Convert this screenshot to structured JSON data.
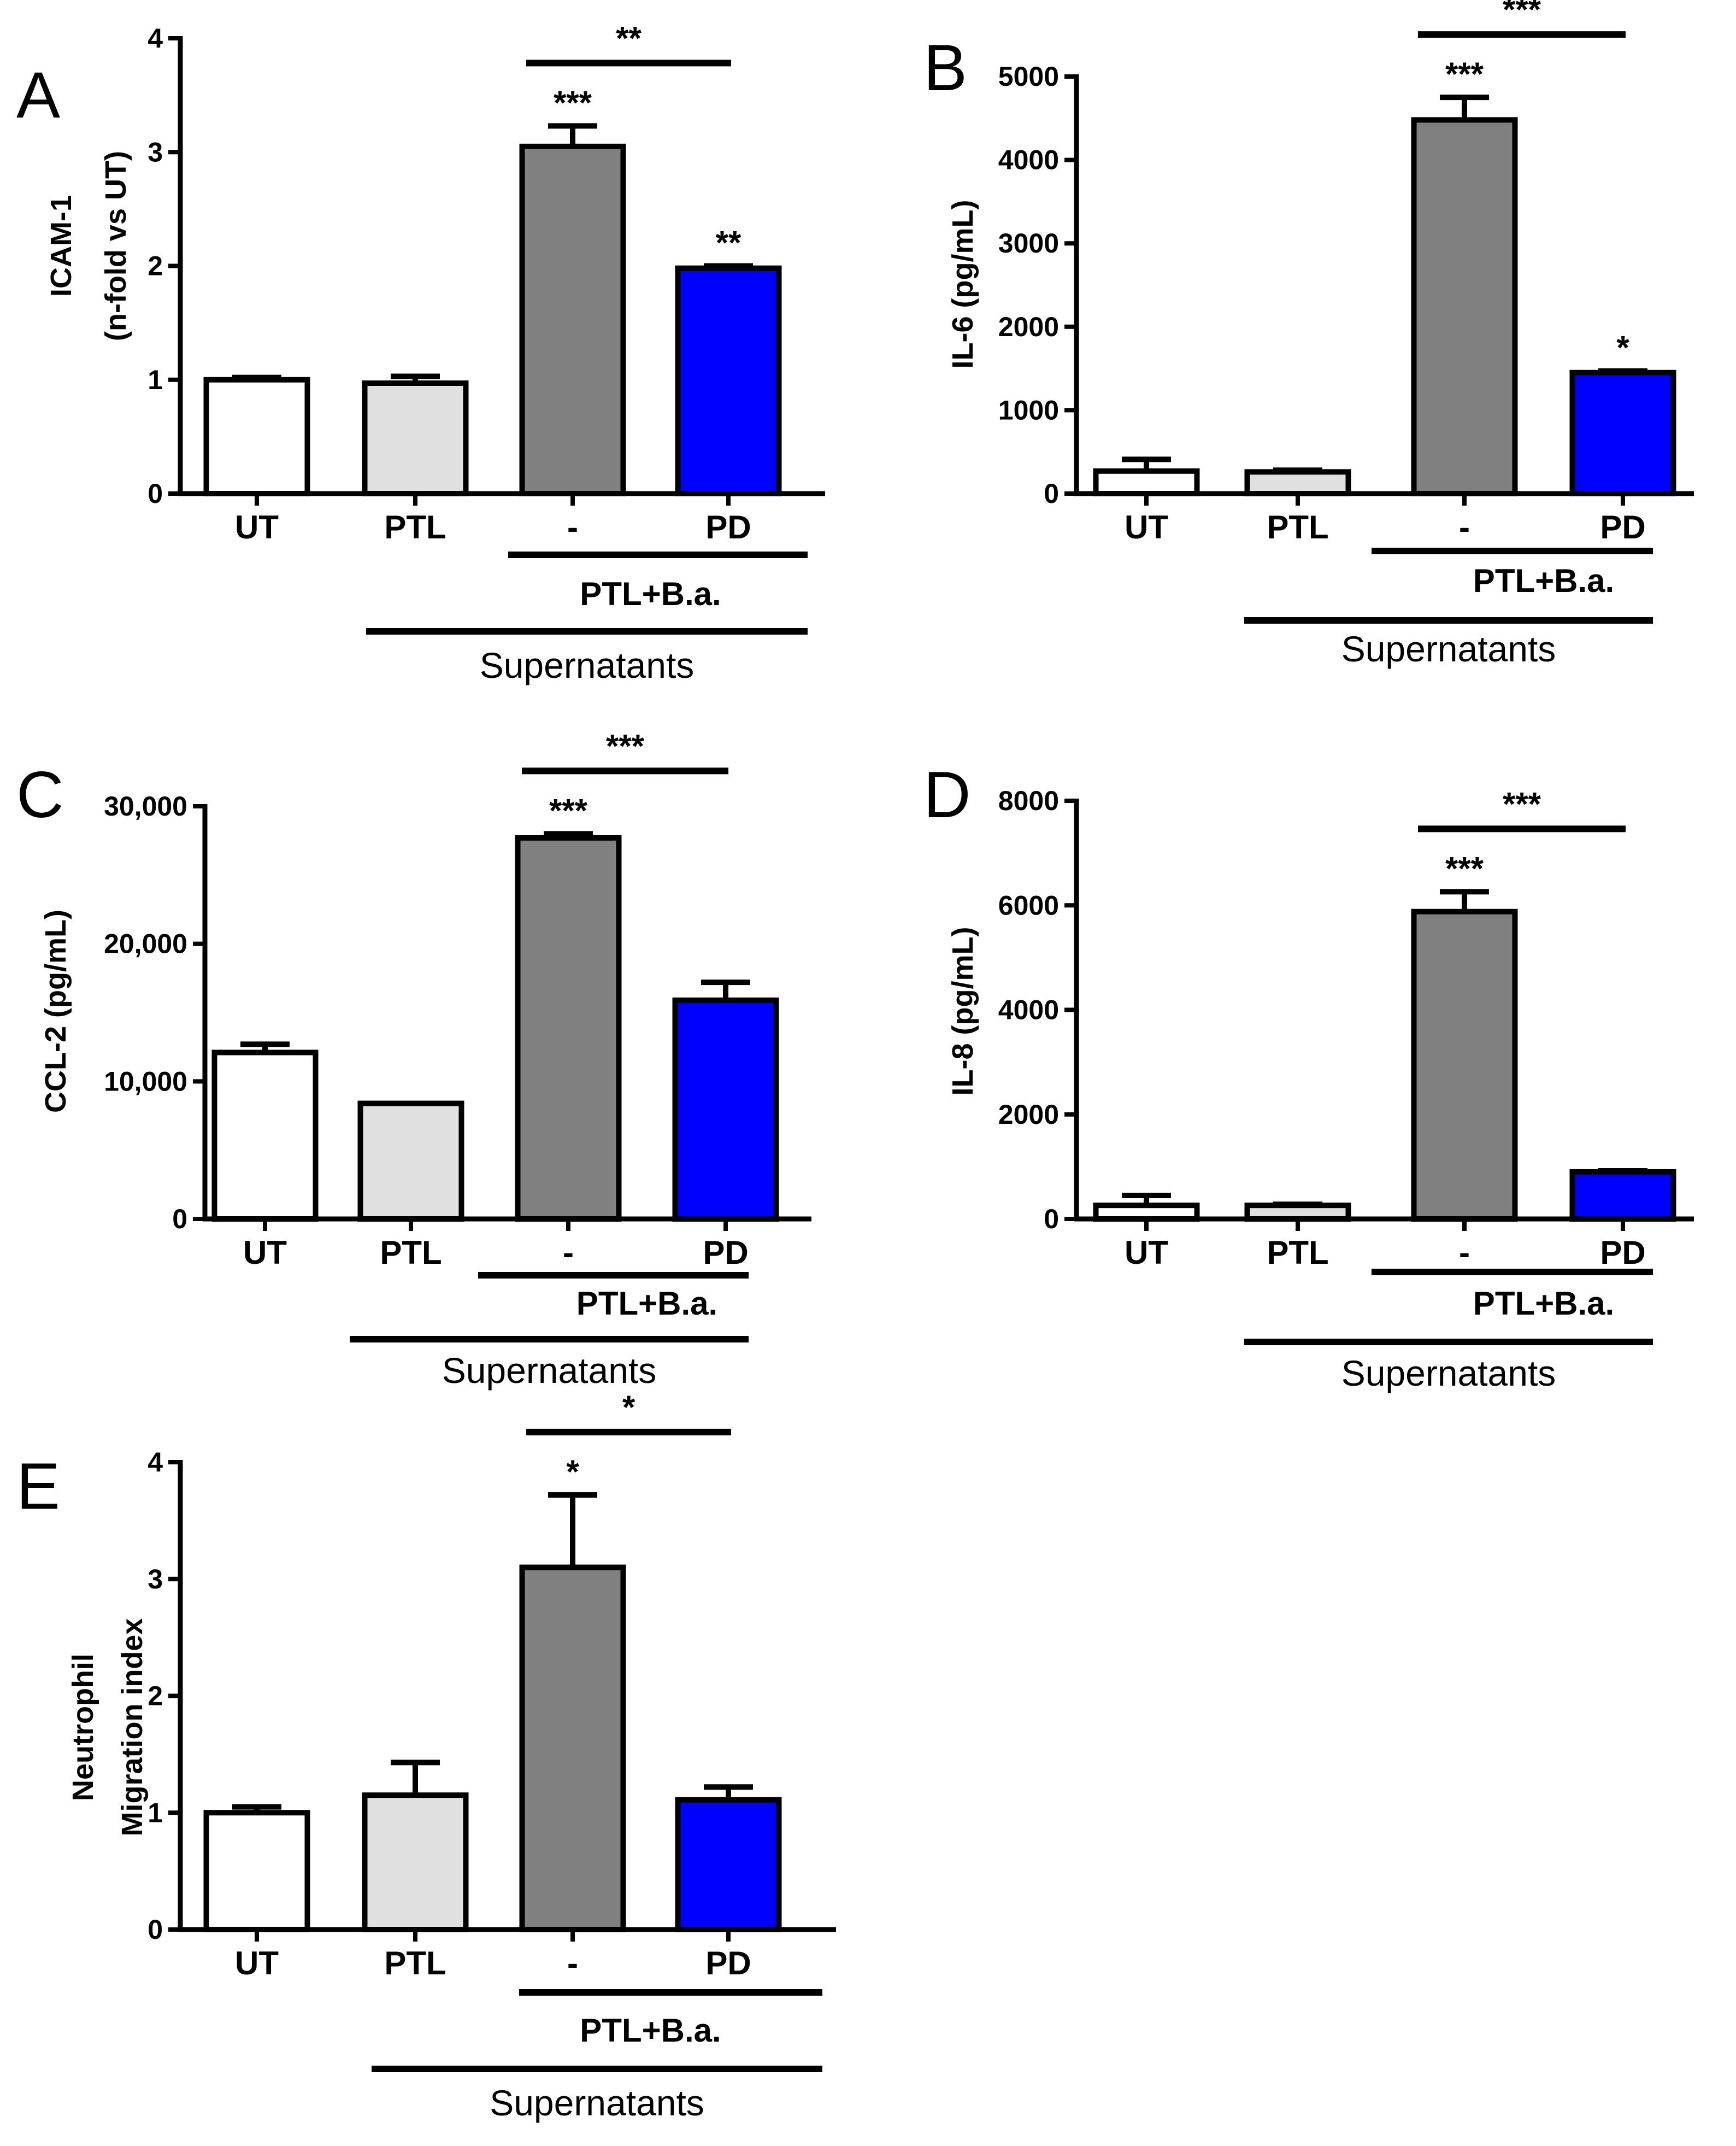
{
  "chart_data": [
    {
      "panel": "A",
      "type": "bar",
      "ylabel": [
        "ICAM-1",
        "(n-fold vs UT)"
      ],
      "ylim": [
        0,
        4
      ],
      "yticks": [
        0,
        1,
        2,
        3,
        4
      ],
      "ytick_labels": [
        "0",
        "1",
        "2",
        "3",
        "4"
      ],
      "categories": [
        "UT",
        "PTL",
        "-",
        "PD"
      ],
      "values": [
        1.0,
        0.97,
        3.05,
        1.98
      ],
      "errors": [
        0.02,
        0.06,
        0.18,
        0.02
      ],
      "colors": [
        "#ffffff",
        "#e0e0e0",
        "#808080",
        "#0000ff"
      ],
      "bar_stars": [
        "",
        "",
        "***",
        "**"
      ],
      "comparison": {
        "from": 2,
        "to": 3,
        "label": "**"
      },
      "group_label": "PTL+B.a.",
      "supernatants_label": "Supernatants"
    },
    {
      "panel": "B",
      "type": "bar",
      "ylabel": [
        "IL-6 (pg/mL)"
      ],
      "ylim": [
        0,
        5000
      ],
      "yticks": [
        0,
        1000,
        2000,
        3000,
        4000,
        5000
      ],
      "ytick_labels": [
        "0",
        "1000",
        "2000",
        "3000",
        "4000",
        "5000"
      ],
      "categories": [
        "UT",
        "PTL",
        "-",
        "PD"
      ],
      "values": [
        270,
        260,
        4480,
        1450
      ],
      "errors": [
        140,
        20,
        270,
        20
      ],
      "colors": [
        "#ffffff",
        "#e0e0e0",
        "#808080",
        "#0000ff"
      ],
      "bar_stars": [
        "",
        "",
        "***",
        "*"
      ],
      "comparison": {
        "from": 2,
        "to": 3,
        "label": "***"
      },
      "group_label": "PTL+B.a.",
      "supernatants_label": "Supernatants"
    },
    {
      "panel": "C",
      "type": "bar",
      "ylabel": [
        "CCL-2 (pg/mL)"
      ],
      "ylim": [
        0,
        30000
      ],
      "yticks": [
        0,
        10000,
        20000,
        30000
      ],
      "ytick_labels": [
        "0",
        "10,000",
        "20,000",
        "30,000"
      ],
      "categories": [
        "UT",
        "PTL",
        "-",
        "PD"
      ],
      "values": [
        12100,
        8400,
        27700,
        15900
      ],
      "errors": [
        600,
        0,
        300,
        1300
      ],
      "colors": [
        "#ffffff",
        "#e0e0e0",
        "#808080",
        "#0000ff"
      ],
      "bar_stars": [
        "",
        "",
        "***",
        ""
      ],
      "comparison": {
        "from": 2,
        "to": 3,
        "label": "***"
      },
      "group_label": "PTL+B.a.",
      "supernatants_label": "Supernatants"
    },
    {
      "panel": "D",
      "type": "bar",
      "ylabel": [
        "IL-8 (pg/mL)"
      ],
      "ylim": [
        0,
        8000
      ],
      "yticks": [
        0,
        2000,
        4000,
        6000,
        8000
      ],
      "ytick_labels": [
        "0",
        "2000",
        "4000",
        "6000",
        "8000"
      ],
      "categories": [
        "UT",
        "PTL",
        "-",
        "PD"
      ],
      "values": [
        260,
        260,
        5880,
        900
      ],
      "errors": [
        190,
        20,
        380,
        20
      ],
      "colors": [
        "#ffffff",
        "#e0e0e0",
        "#808080",
        "#0000ff"
      ],
      "bar_stars": [
        "",
        "",
        "***",
        ""
      ],
      "comparison": {
        "from": 2,
        "to": 3,
        "label": "***"
      },
      "group_label": "PTL+B.a.",
      "supernatants_label": "Supernatants"
    },
    {
      "panel": "E",
      "type": "bar",
      "ylabel": [
        "Neutrophil",
        "Migration index"
      ],
      "ylim": [
        0,
        4
      ],
      "yticks": [
        0,
        1,
        2,
        3,
        4
      ],
      "ytick_labels": [
        "0",
        "1",
        "2",
        "3",
        "4"
      ],
      "categories": [
        "UT",
        "PTL",
        "-",
        "PD"
      ],
      "values": [
        1.0,
        1.15,
        3.1,
        1.11
      ],
      "errors": [
        0.05,
        0.28,
        0.62,
        0.11
      ],
      "colors": [
        "#ffffff",
        "#e0e0e0",
        "#808080",
        "#0000ff"
      ],
      "bar_stars": [
        "",
        "",
        "*",
        ""
      ],
      "comparison": {
        "from": 2,
        "to": 3,
        "label": "*"
      },
      "group_label": "PTL+B.a.",
      "supernatants_label": "Supernatants"
    }
  ]
}
